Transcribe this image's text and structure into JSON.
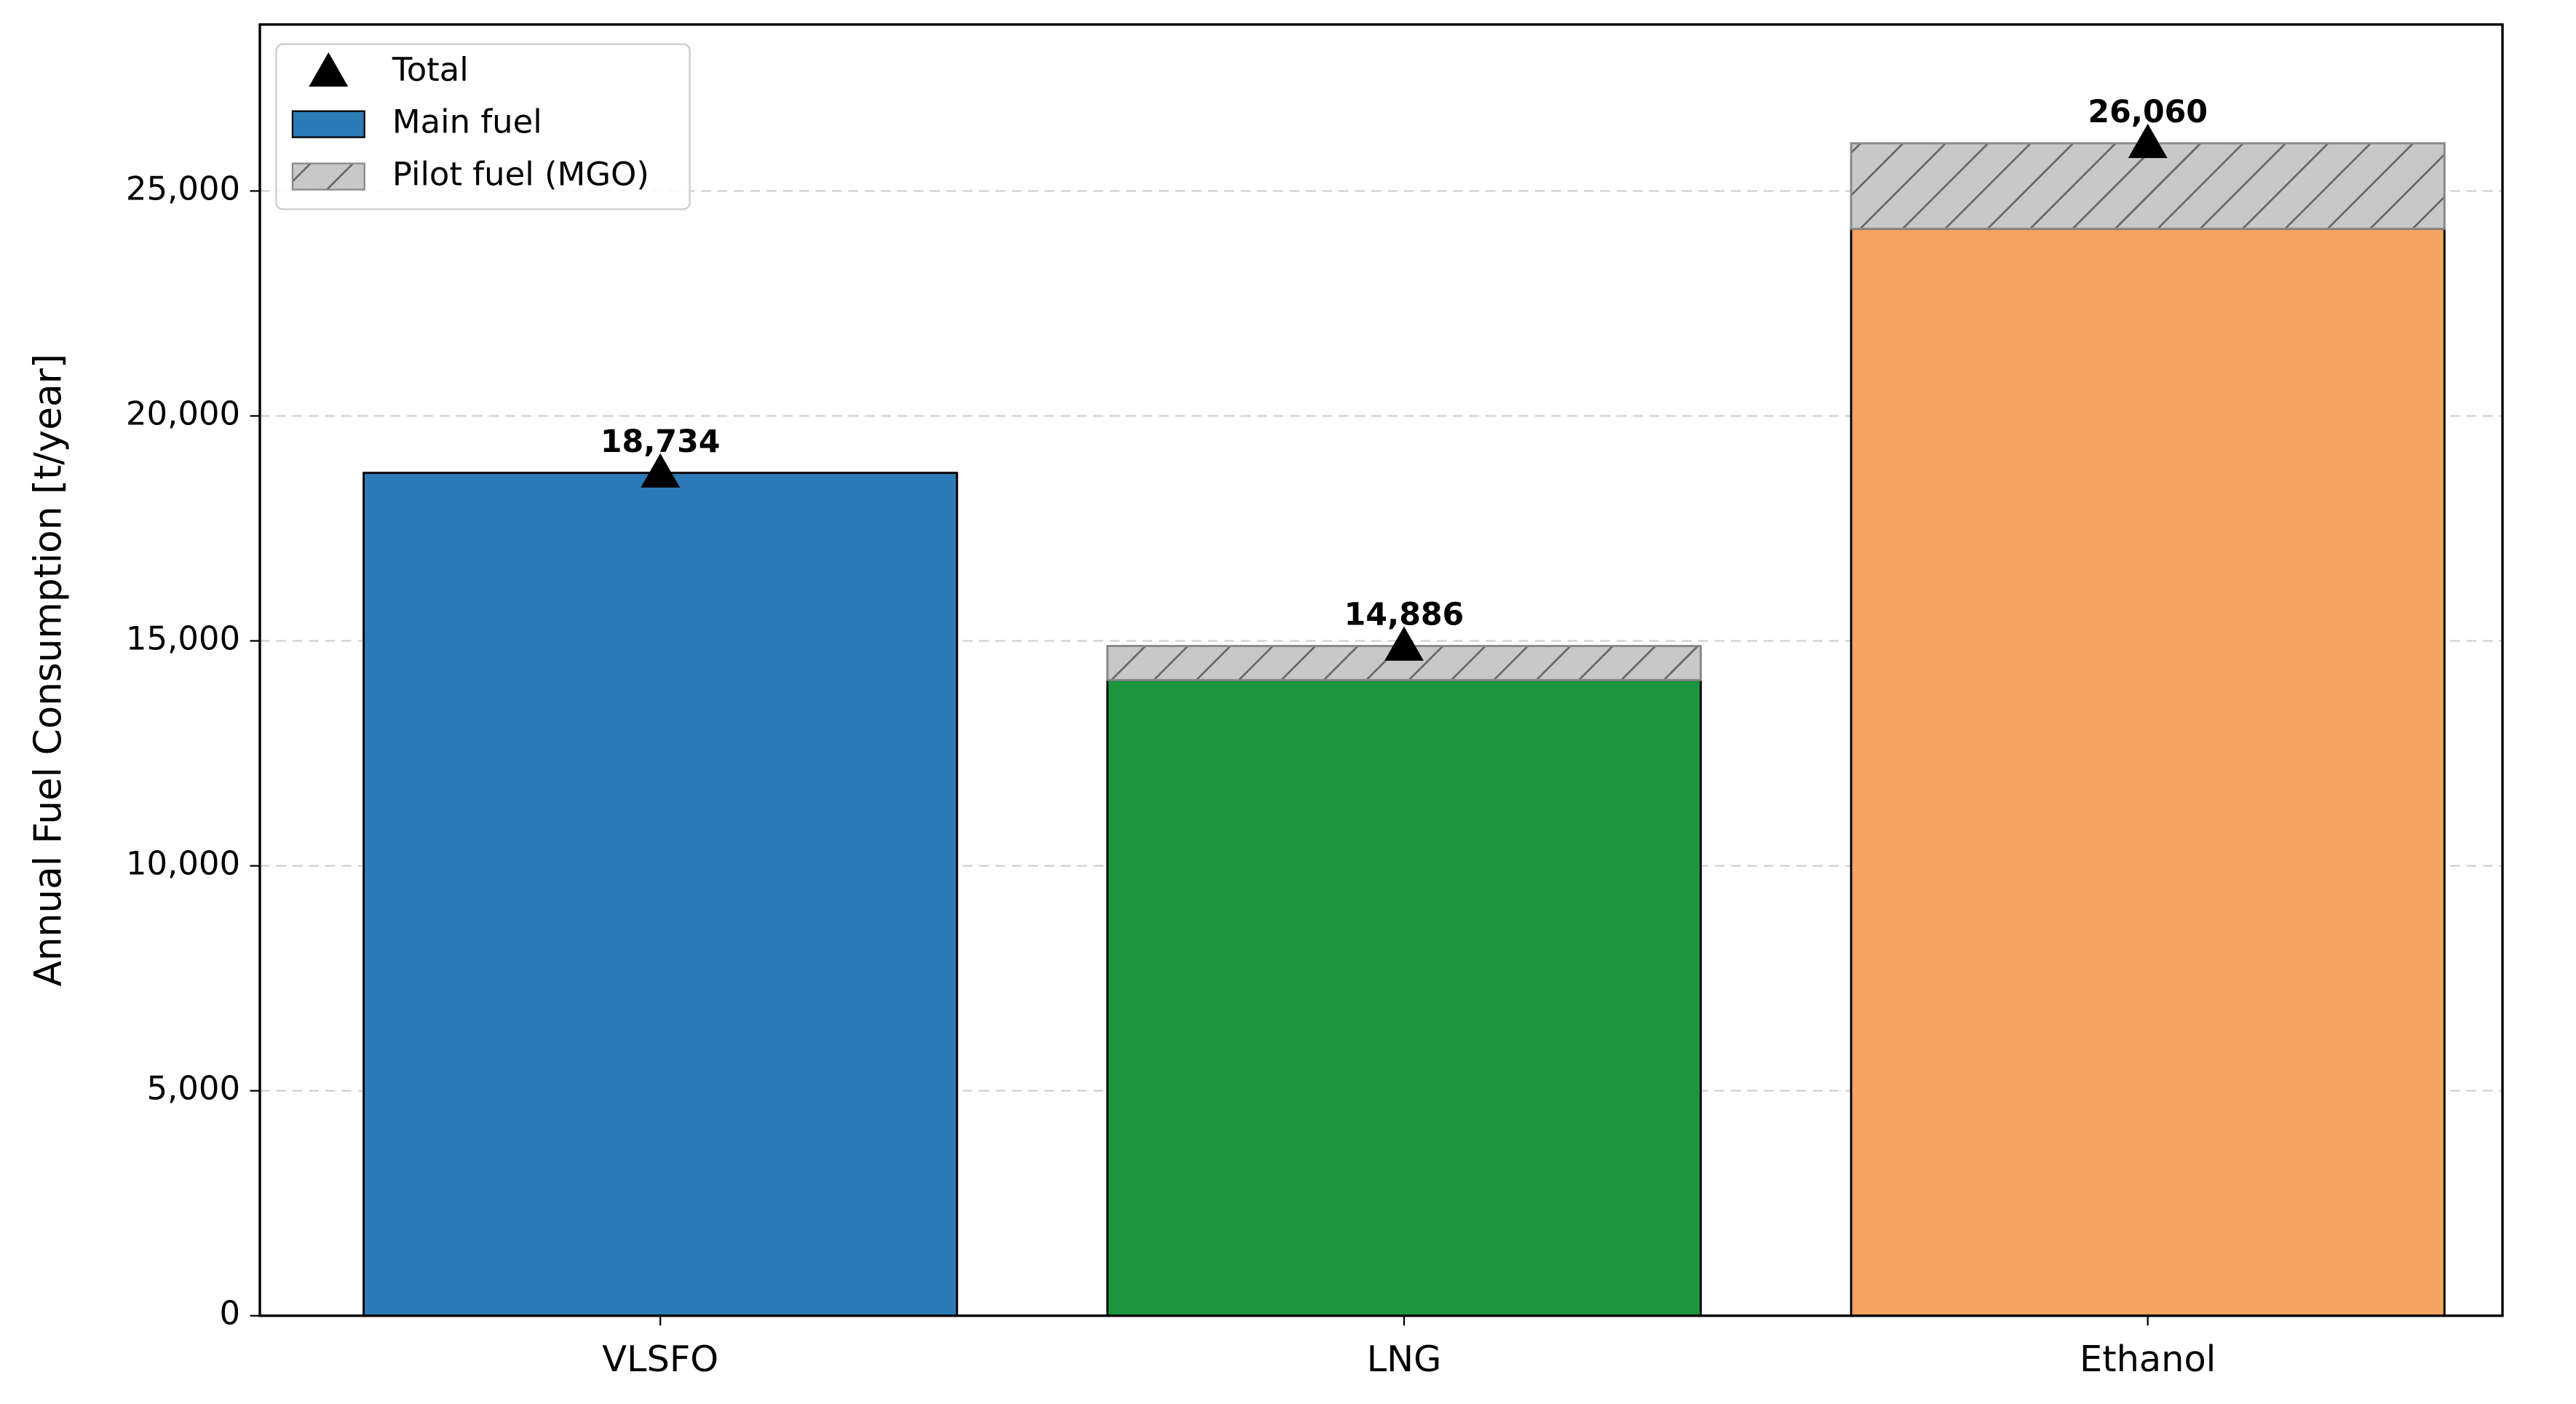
{
  "chart_data": {
    "type": "bar",
    "stacked": true,
    "y_label": "Annual Fuel Consumption [t/year]",
    "categories": [
      "VLSFO",
      "LNG",
      "Ethanol"
    ],
    "series": [
      {
        "name": "Main fuel",
        "color": "#2c7bb6",
        "colors": [
          "#2c7bb6",
          "#1a9641",
          "#f4a460"
        ],
        "values": [
          18734,
          14130,
          24160
        ]
      },
      {
        "name": "Pilot fuel (MGO)",
        "color": "#c8c8c8",
        "hatch": "/",
        "values": [
          0,
          756,
          1900
        ]
      },
      {
        "name": "Total",
        "color": "#000000",
        "marker": "triangle",
        "values": [
          18734,
          14886,
          26060
        ],
        "value_labels": [
          "18,734",
          "14,886",
          "26,060"
        ]
      }
    ],
    "ylim": [
      0,
      28700
    ],
    "yticks": [
      0,
      {
        "value": 5000,
        "label": "5,000"
      },
      {
        "value": 10000,
        "label": "10,000"
      },
      {
        "value": 15000,
        "label": "15,000"
      },
      {
        "value": 20000,
        "label": "20,000"
      },
      {
        "value": 25000,
        "label": "25,000"
      }
    ],
    "grid": true,
    "legend": "upper left"
  }
}
